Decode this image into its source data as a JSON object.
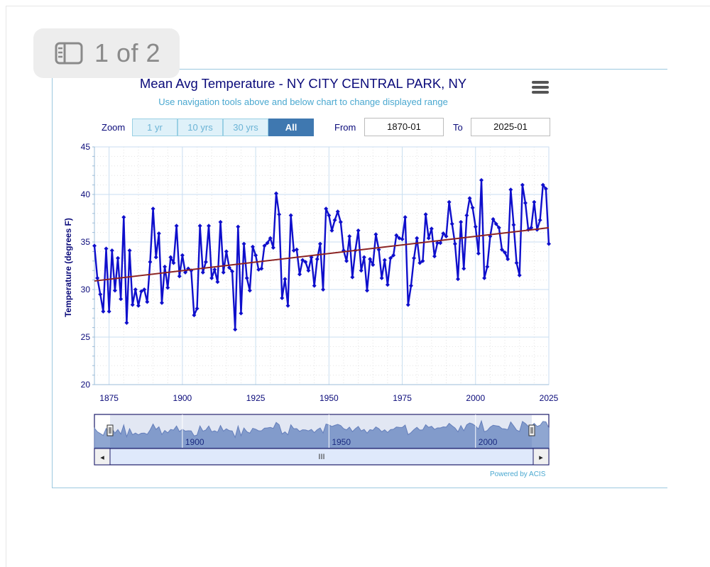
{
  "page_badge": {
    "label": "1 of 2",
    "icon": "sidebar-icon"
  },
  "chart": {
    "title": "Mean Avg Temperature  - NY CITY CENTRAL PARK, NY",
    "subtitle": "Use navigation tools above and below chart to change displayed range",
    "menu_icon": "hamburger-menu-icon"
  },
  "zoom": {
    "label": "Zoom",
    "buttons": [
      "1 yr",
      "10 yrs",
      "30 yrs",
      "All"
    ],
    "active": "All"
  },
  "range": {
    "from_label": "From",
    "from_value": "1870-01",
    "to_label": "To",
    "to_value": "2025-01"
  },
  "navigator": {
    "scroll_thumb": "III",
    "left_arrow": "◂",
    "right_arrow": "▸"
  },
  "powered_by": "Powered by ACIS",
  "colors": {
    "series": "#0f0fcc",
    "trend": "#8b2323",
    "title": "#0a0a7a",
    "subtitle": "#4aa8d0",
    "navigator_fill": "#8fa6d1"
  },
  "chart_data": {
    "type": "line",
    "title": "Mean Avg Temperature  - NY CITY CENTRAL PARK, NY",
    "subtitle": "Use navigation tools above and below chart to change displayed range",
    "xlabel": "",
    "ylabel": "Temperature (degrees F)",
    "xlim": [
      1870,
      2025
    ],
    "ylim": [
      20,
      45
    ],
    "x_ticks": [
      1875,
      1900,
      1925,
      1950,
      1975,
      2000,
      2025
    ],
    "y_ticks": [
      20,
      25,
      30,
      35,
      40,
      45
    ],
    "grid": true,
    "navigator_ticks": [
      1900,
      1950,
      2000
    ],
    "series": [
      {
        "values": [
          [
            1870,
            34.6
          ],
          [
            1871,
            31.2
          ],
          [
            1872,
            29.5
          ],
          [
            1873,
            27.7
          ],
          [
            1874,
            34.3
          ],
          [
            1875,
            27.7
          ],
          [
            1876,
            34.1
          ],
          [
            1877,
            29.9
          ],
          [
            1878,
            33.3
          ],
          [
            1879,
            29.0
          ],
          [
            1880,
            37.6
          ],
          [
            1881,
            26.5
          ],
          [
            1882,
            34.1
          ],
          [
            1883,
            28.4
          ],
          [
            1884,
            30.0
          ],
          [
            1885,
            28.3
          ],
          [
            1886,
            29.8
          ],
          [
            1887,
            30.0
          ],
          [
            1888,
            28.7
          ],
          [
            1889,
            32.9
          ],
          [
            1890,
            38.5
          ],
          [
            1891,
            33.4
          ],
          [
            1892,
            35.9
          ],
          [
            1893,
            28.6
          ],
          [
            1894,
            32.4
          ],
          [
            1895,
            30.2
          ],
          [
            1896,
            33.4
          ],
          [
            1897,
            32.8
          ],
          [
            1898,
            36.7
          ],
          [
            1899,
            31.4
          ],
          [
            1900,
            33.6
          ],
          [
            1901,
            31.8
          ],
          [
            1902,
            32.2
          ],
          [
            1903,
            32.0
          ],
          [
            1904,
            27.3
          ],
          [
            1905,
            28.0
          ],
          [
            1906,
            36.7
          ],
          [
            1907,
            31.8
          ],
          [
            1908,
            32.9
          ],
          [
            1909,
            36.7
          ],
          [
            1910,
            31.2
          ],
          [
            1911,
            32.1
          ],
          [
            1912,
            30.8
          ],
          [
            1913,
            37.1
          ],
          [
            1914,
            31.8
          ],
          [
            1915,
            34.0
          ],
          [
            1916,
            32.3
          ],
          [
            1917,
            31.9
          ],
          [
            1918,
            25.8
          ],
          [
            1919,
            36.6
          ],
          [
            1920,
            27.5
          ],
          [
            1921,
            34.8
          ],
          [
            1922,
            31.2
          ],
          [
            1923,
            29.9
          ],
          [
            1924,
            34.5
          ],
          [
            1925,
            33.6
          ],
          [
            1926,
            32.1
          ],
          [
            1927,
            32.2
          ],
          [
            1928,
            34.6
          ],
          [
            1929,
            34.9
          ],
          [
            1930,
            35.4
          ],
          [
            1931,
            34.4
          ],
          [
            1932,
            40.1
          ],
          [
            1933,
            37.9
          ],
          [
            1934,
            29.1
          ],
          [
            1935,
            31.1
          ],
          [
            1936,
            28.3
          ],
          [
            1937,
            37.8
          ],
          [
            1938,
            34.1
          ],
          [
            1939,
            34.2
          ],
          [
            1940,
            31.6
          ],
          [
            1941,
            33.1
          ],
          [
            1942,
            32.9
          ],
          [
            1943,
            32.0
          ],
          [
            1944,
            33.4
          ],
          [
            1945,
            30.4
          ],
          [
            1946,
            33.2
          ],
          [
            1947,
            34.8
          ],
          [
            1948,
            30.0
          ],
          [
            1949,
            38.5
          ],
          [
            1950,
            37.8
          ],
          [
            1951,
            36.2
          ],
          [
            1952,
            37.3
          ],
          [
            1953,
            38.2
          ],
          [
            1954,
            37.1
          ],
          [
            1955,
            34.1
          ],
          [
            1956,
            33.0
          ],
          [
            1957,
            35.6
          ],
          [
            1958,
            31.3
          ],
          [
            1959,
            34.1
          ],
          [
            1960,
            36.2
          ],
          [
            1961,
            32.0
          ],
          [
            1962,
            33.4
          ],
          [
            1963,
            29.9
          ],
          [
            1964,
            33.2
          ],
          [
            1965,
            32.6
          ],
          [
            1966,
            35.8
          ],
          [
            1967,
            34.2
          ],
          [
            1968,
            31.2
          ],
          [
            1969,
            33.1
          ],
          [
            1970,
            30.5
          ],
          [
            1971,
            33.3
          ],
          [
            1972,
            33.6
          ],
          [
            1973,
            35.7
          ],
          [
            1974,
            35.4
          ],
          [
            1975,
            35.3
          ],
          [
            1976,
            37.6
          ],
          [
            1977,
            28.4
          ],
          [
            1978,
            30.4
          ],
          [
            1979,
            33.3
          ],
          [
            1980,
            35.4
          ],
          [
            1981,
            32.8
          ],
          [
            1982,
            33.0
          ],
          [
            1983,
            37.9
          ],
          [
            1984,
            35.4
          ],
          [
            1985,
            36.4
          ],
          [
            1986,
            33.5
          ],
          [
            1987,
            34.9
          ],
          [
            1988,
            34.9
          ],
          [
            1989,
            35.9
          ],
          [
            1990,
            35.6
          ],
          [
            1991,
            39.2
          ],
          [
            1992,
            36.9
          ],
          [
            1993,
            34.8
          ],
          [
            1994,
            31.1
          ],
          [
            1995,
            37.1
          ],
          [
            1996,
            32.2
          ],
          [
            1997,
            37.8
          ],
          [
            1998,
            39.6
          ],
          [
            1999,
            38.6
          ],
          [
            2000,
            36.6
          ],
          [
            2001,
            33.8
          ],
          [
            2002,
            41.5
          ],
          [
            2003,
            31.2
          ],
          [
            2004,
            32.4
          ],
          [
            2005,
            35.6
          ],
          [
            2006,
            37.4
          ],
          [
            2007,
            36.9
          ],
          [
            2008,
            36.5
          ],
          [
            2009,
            34.2
          ],
          [
            2010,
            33.9
          ],
          [
            2011,
            33.2
          ],
          [
            2012,
            40.5
          ],
          [
            2013,
            36.8
          ],
          [
            2014,
            32.8
          ],
          [
            2015,
            31.5
          ],
          [
            2016,
            41.0
          ],
          [
            2017,
            39.1
          ],
          [
            2018,
            36.3
          ],
          [
            2019,
            36.5
          ],
          [
            2020,
            39.2
          ],
          [
            2021,
            36.3
          ],
          [
            2022,
            37.3
          ],
          [
            2023,
            41.0
          ],
          [
            2024,
            40.6
          ],
          [
            2025,
            34.8
          ]
        ]
      },
      {
        "values": [
          [
            1870,
            30.9
          ],
          [
            2025,
            36.5
          ]
        ]
      }
    ]
  }
}
